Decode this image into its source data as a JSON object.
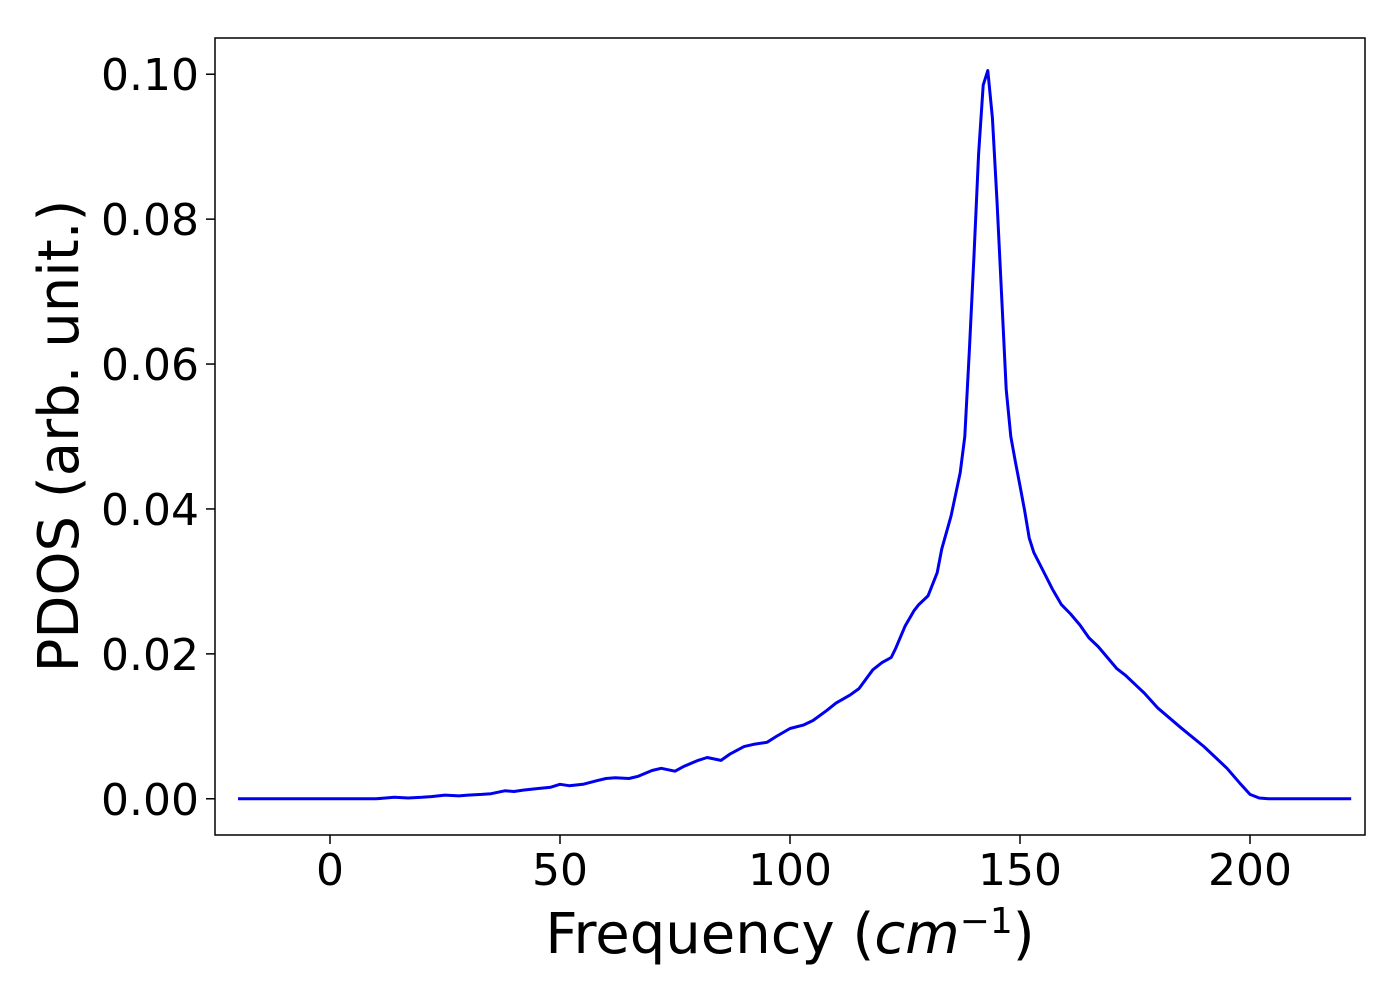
{
  "chart_data": {
    "type": "line",
    "title": "",
    "xlabel": "Frequency (",
    "xlabel_unit": "cm",
    "xlabel_exp": "−1",
    "xlabel_close": ")",
    "ylabel": "PDOS (arb. unit.)",
    "xlim": [
      -25,
      225
    ],
    "ylim": [
      -0.005,
      0.105
    ],
    "xticks": [
      0,
      50,
      100,
      150,
      200
    ],
    "xtick_labels": [
      "0",
      "50",
      "100",
      "150",
      "200"
    ],
    "yticks": [
      0.0,
      0.02,
      0.04,
      0.06,
      0.08,
      0.1
    ],
    "ytick_labels": [
      "0.00",
      "0.02",
      "0.04",
      "0.06",
      "0.08",
      "0.10"
    ],
    "grid": false,
    "line_color": "#0000ee",
    "series": [
      {
        "x": [
          -20,
          -10,
          0,
          10,
          14,
          17,
          20,
          22,
          25,
          28,
          30,
          33,
          35,
          38,
          40,
          42,
          45,
          48,
          50,
          52,
          55,
          58,
          60,
          62,
          65,
          67,
          70,
          72,
          75,
          77,
          80,
          82,
          85,
          87,
          90,
          92,
          95,
          97,
          100,
          103,
          105,
          108,
          110,
          113,
          115,
          118,
          120,
          122,
          123,
          125,
          127,
          128,
          130,
          132,
          133,
          135,
          136,
          137,
          138,
          139,
          140,
          141,
          142,
          143,
          144,
          145,
          146,
          147,
          148,
          149,
          150,
          151,
          152,
          153,
          155,
          157,
          159,
          161,
          163,
          165,
          167,
          169,
          171,
          173,
          175,
          177,
          180,
          185,
          190,
          195,
          198,
          200,
          202,
          204,
          205,
          206,
          208,
          212,
          215,
          222
        ],
        "y": [
          0.0,
          0.0,
          0.0,
          0.0,
          0.0002,
          0.0001,
          0.0002,
          0.0003,
          0.0005,
          0.0004,
          0.0005,
          0.0006,
          0.0007,
          0.0011,
          0.001,
          0.0012,
          0.0014,
          0.0016,
          0.002,
          0.0018,
          0.002,
          0.0025,
          0.0028,
          0.0029,
          0.0028,
          0.0031,
          0.0039,
          0.0042,
          0.0038,
          0.0045,
          0.0053,
          0.0057,
          0.0053,
          0.0062,
          0.0072,
          0.0075,
          0.0078,
          0.0086,
          0.0097,
          0.0102,
          0.0108,
          0.0122,
          0.0132,
          0.0143,
          0.0152,
          0.0178,
          0.0188,
          0.0195,
          0.0208,
          0.0238,
          0.026,
          0.0268,
          0.028,
          0.0312,
          0.0345,
          0.039,
          0.042,
          0.045,
          0.05,
          0.062,
          0.075,
          0.089,
          0.0985,
          0.1005,
          0.094,
          0.0825,
          0.0695,
          0.0565,
          0.05,
          0.0465,
          0.0432,
          0.0398,
          0.036,
          0.034,
          0.0315,
          0.029,
          0.0268,
          0.0255,
          0.024,
          0.0222,
          0.021,
          0.0195,
          0.018,
          0.017,
          0.0158,
          0.0146,
          0.0125,
          0.0098,
          0.0072,
          0.0042,
          0.002,
          0.0006,
          0.0001,
          0.0,
          0.0,
          0.0,
          0.0,
          0.0,
          0.0,
          0.0
        ]
      }
    ]
  }
}
